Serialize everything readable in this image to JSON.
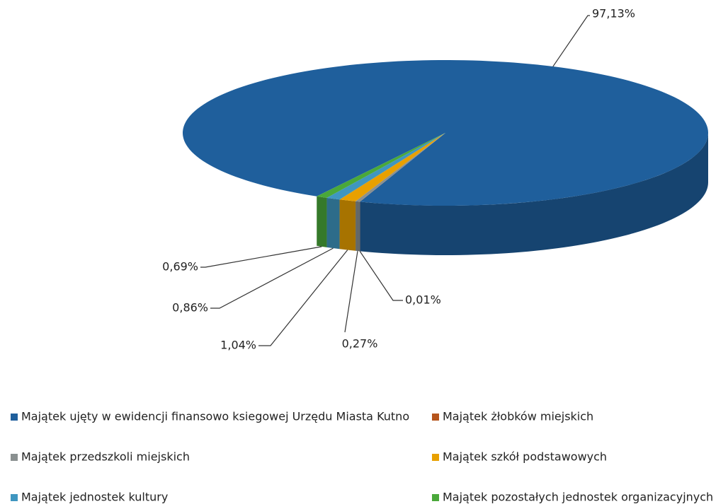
{
  "chart_data": {
    "type": "pie",
    "categories": [
      "Majątek ujęty w ewidencji finansowo ksiegowej Urzędu Miasta Kutno",
      "Majątek żłobków miejskich",
      "Majątek przedszkoli miejskich",
      "Majątek szkół podstawowych",
      "Majątek jednostek kultury",
      "Majątek pozostałych jednostek organizacyjnych"
    ],
    "values": [
      97.13,
      0.01,
      0.27,
      1.04,
      0.86,
      0.69
    ],
    "value_labels": [
      "97,13%",
      "0,01%",
      "0,27%",
      "1,04%",
      "0,86%",
      "0,69%"
    ],
    "colors": [
      "#1f5f9c",
      "#b5541c",
      "#8a9090",
      "#e8a000",
      "#3f96c0",
      "#4aa83a"
    ],
    "legend": "bottom"
  }
}
